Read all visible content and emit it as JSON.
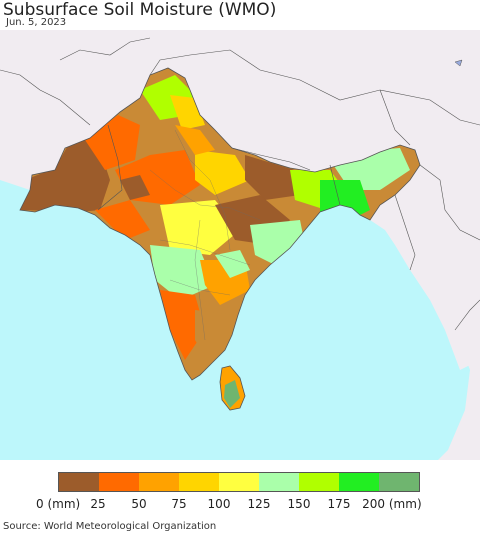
{
  "map": {
    "title": "Subsurface Soil Moisture (WMO)",
    "date": "Jun. 5, 2023",
    "colors": {
      "ocean": "#bdf7fb",
      "outside_land": "#f1ecf1",
      "border": "#555555"
    }
  },
  "legend": {
    "unit_label": "(mm)",
    "bins": [
      {
        "color": "#9c5c2b"
      },
      {
        "color": "#ff6a00"
      },
      {
        "color": "#ffa200"
      },
      {
        "color": "#ffd500"
      },
      {
        "color": "#ffff40"
      },
      {
        "color": "#aaffaa"
      },
      {
        "color": "#b0ff00"
      },
      {
        "color": "#22ee22"
      },
      {
        "color": "#6fb56f"
      }
    ],
    "labels": [
      "0 (mm)",
      "25",
      "50",
      "75",
      "100",
      "125",
      "150",
      "175",
      "200 (mm)"
    ]
  },
  "footer": {
    "source": "Source: World Meteorological Organization"
  }
}
